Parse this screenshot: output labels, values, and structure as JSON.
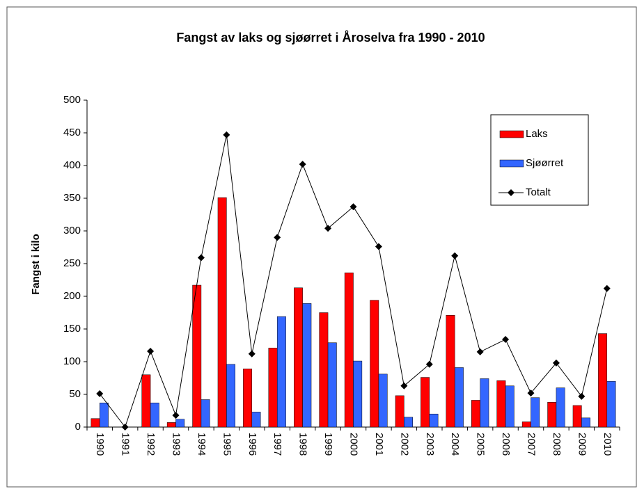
{
  "chart_data": {
    "type": "bar",
    "title": "Fangst av laks og sjøørret i Åroselva fra 1990 - 2010",
    "y_label": "Fangst i kilo",
    "categories": [
      "1990",
      "1991",
      "1992",
      "1993",
      "1994",
      "1995",
      "1996",
      "1997",
      "1998",
      "1999",
      "2000",
      "2001",
      "2002",
      "2003",
      "2004",
      "2005",
      "2006",
      "2007",
      "2008",
      "2009",
      "2010"
    ],
    "series": [
      {
        "name": "Laks",
        "type": "bar",
        "color": "#ff0000",
        "values": [
          13,
          0,
          80,
          7,
          217,
          351,
          89,
          121,
          213,
          175,
          236,
          194,
          48,
          76,
          171,
          41,
          71,
          8,
          38,
          33,
          143
        ]
      },
      {
        "name": "Sjøørret",
        "type": "bar",
        "color": "#3366ff",
        "values": [
          37,
          0,
          37,
          12,
          42,
          96,
          23,
          169,
          189,
          129,
          101,
          81,
          15,
          20,
          91,
          74,
          63,
          45,
          60,
          14,
          70
        ]
      },
      {
        "name": "Totalt",
        "type": "line",
        "color": "#000000",
        "values": [
          51,
          0,
          116,
          18,
          259,
          447,
          112,
          290,
          402,
          304,
          337,
          276,
          63,
          96,
          262,
          115,
          134,
          52,
          98,
          47,
          212
        ]
      }
    ],
    "ylim": [
      0,
      500
    ],
    "yticks": [
      0,
      50,
      100,
      150,
      200,
      250,
      300,
      350,
      400,
      450,
      500
    ],
    "legend": "upper right"
  }
}
